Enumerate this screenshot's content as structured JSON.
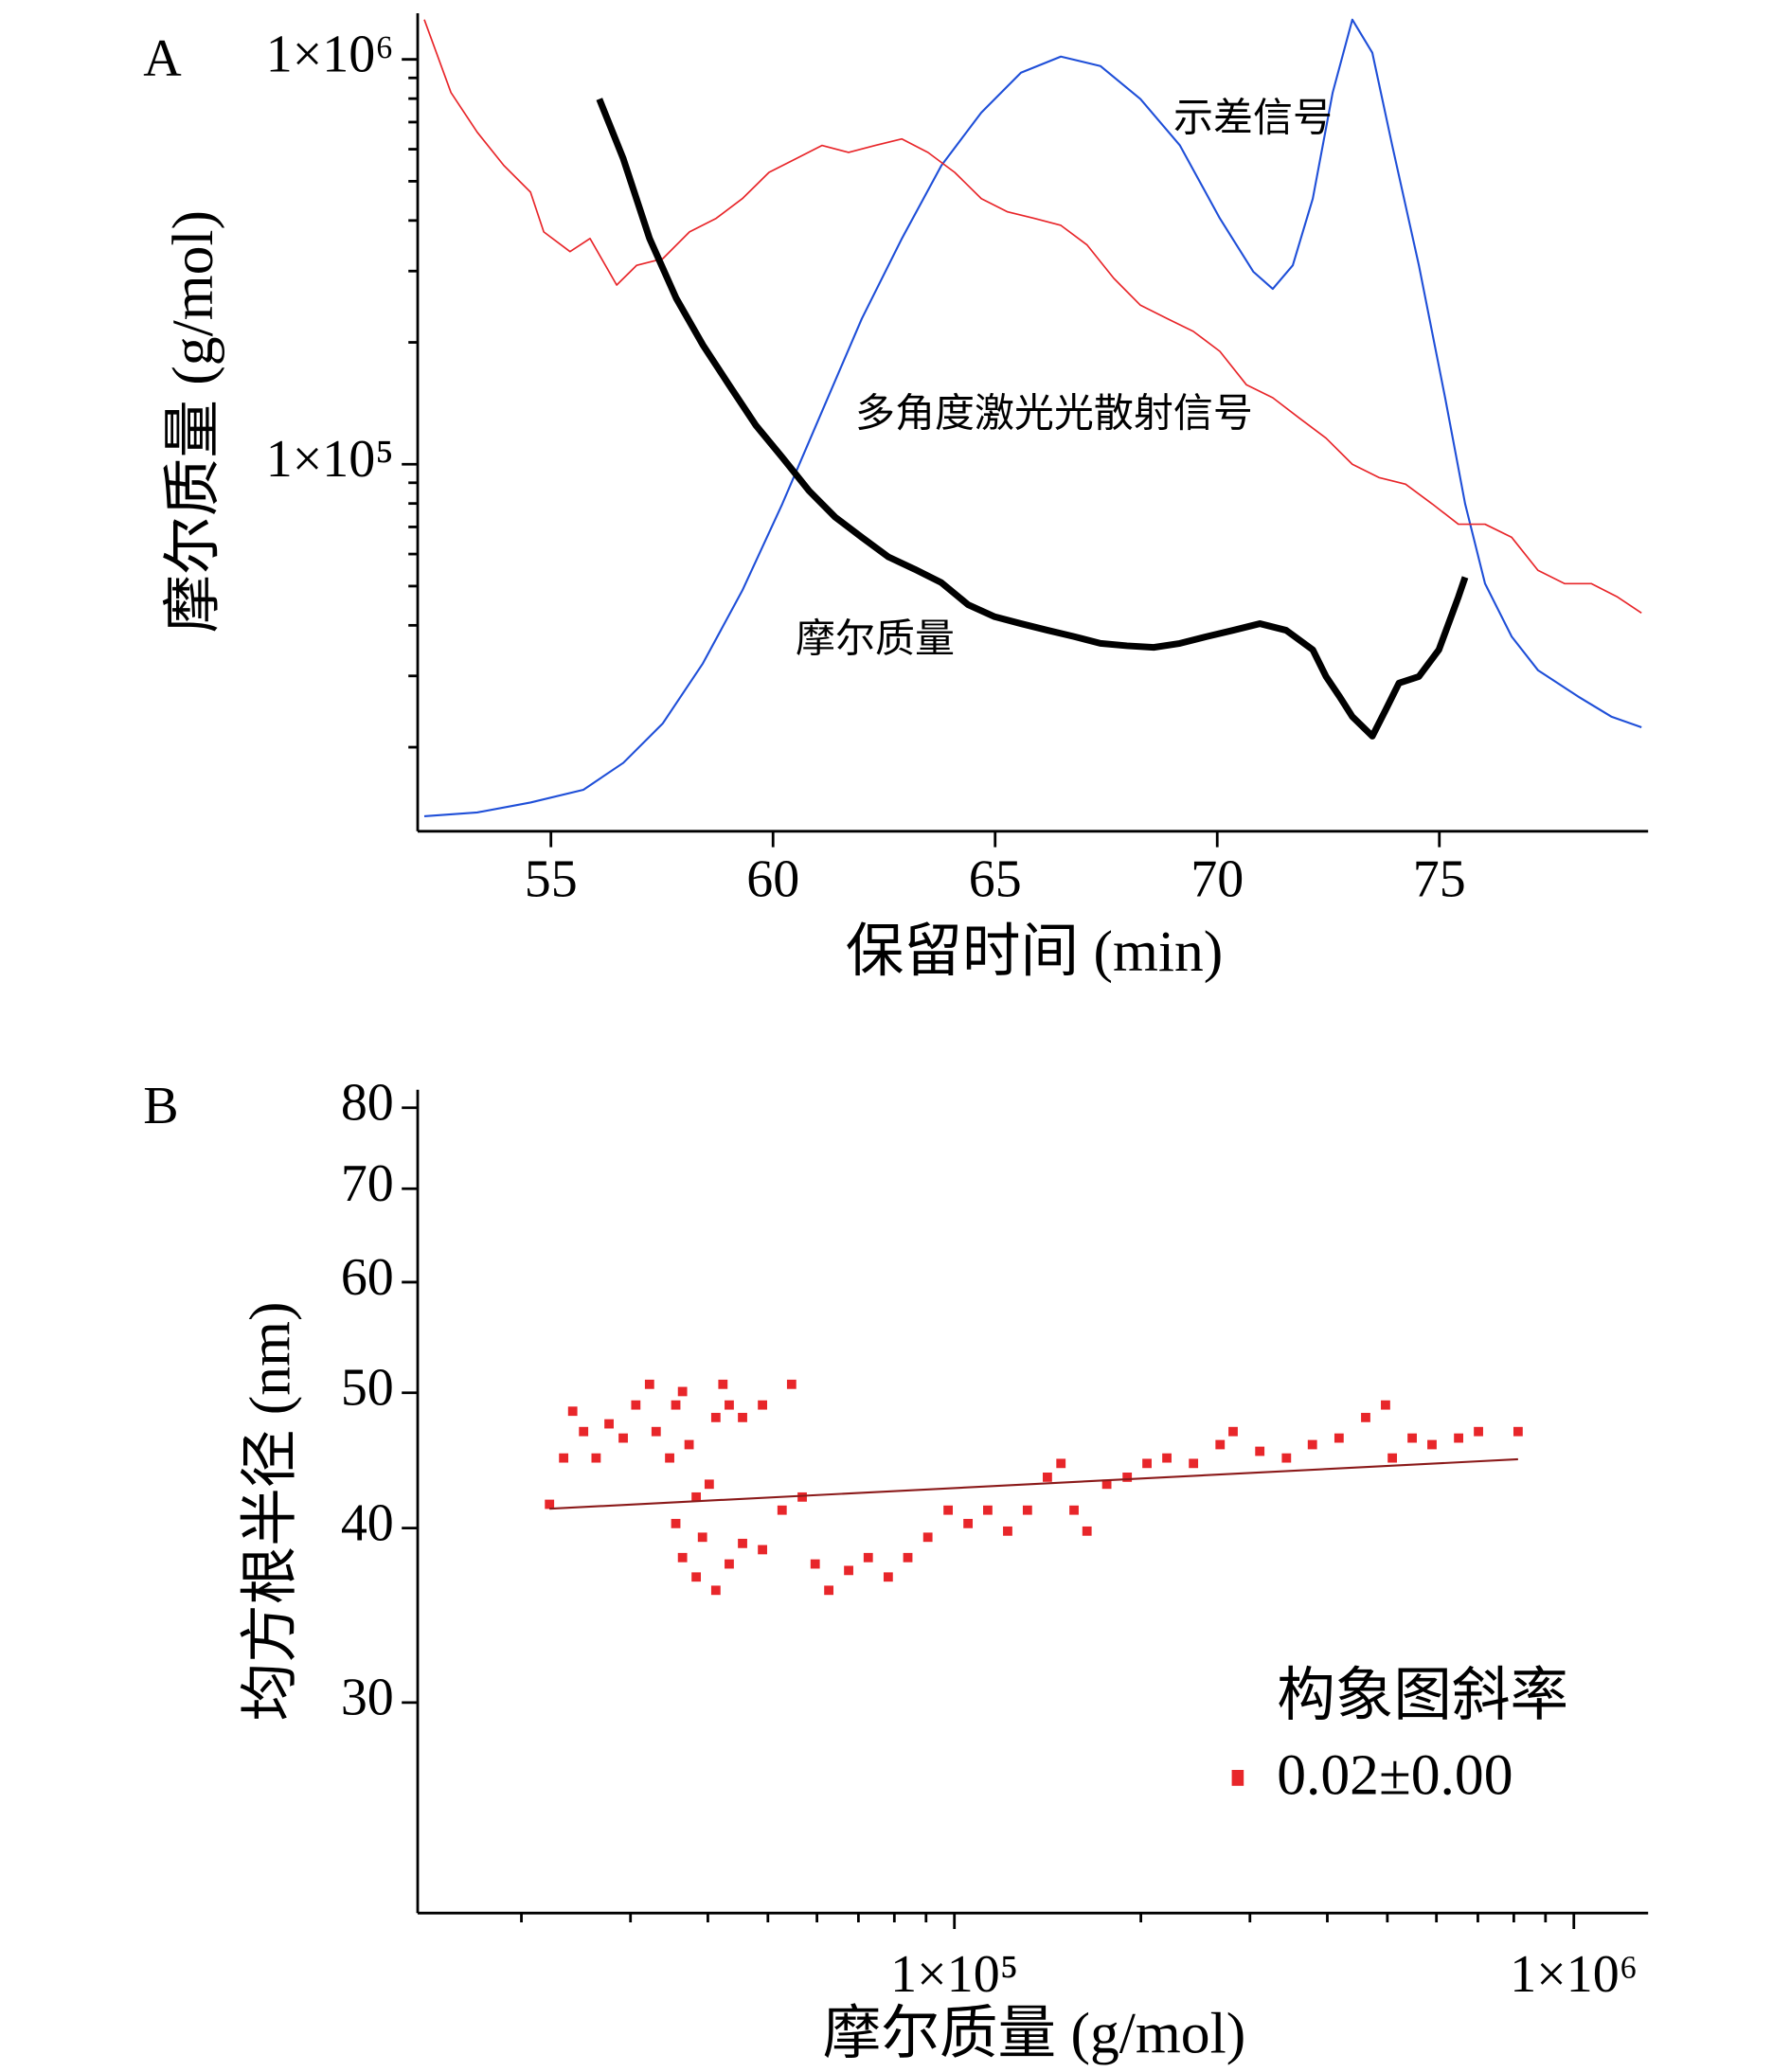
{
  "chart_data": [
    {
      "type": "line",
      "panel": "A",
      "ylabel": "摩尔质量 (g/mol)",
      "xlabel": "保留时间 (min)",
      "xlim": [
        52,
        79.7
      ],
      "xticks": [
        55,
        60,
        65,
        70,
        75
      ],
      "ylog": true,
      "ylim": [
        12400,
        1300000
      ],
      "yticks": [
        {
          "value": 100000,
          "label": "1×10⁵"
        },
        {
          "value": 1000000,
          "label": "1×10⁶"
        }
      ],
      "yminor_ticks": [
        20000,
        30000,
        40000,
        50000,
        60000,
        70000,
        80000,
        90000,
        200000,
        300000,
        400000,
        500000,
        600000,
        700000,
        800000,
        900000
      ],
      "series": [
        {
          "name": "示差信号",
          "color": "#1f4fd8",
          "width": 1.5,
          "x": [
            52.15,
            53.34,
            54.54,
            55.73,
            56.63,
            57.52,
            58.42,
            59.31,
            60.21,
            61.1,
            62.0,
            62.9,
            63.79,
            64.69,
            65.58,
            66.48,
            67.37,
            68.27,
            69.16,
            70.06,
            70.81,
            71.25,
            71.7,
            72.15,
            72.6,
            73.04,
            73.49,
            73.94,
            74.54,
            75.13,
            75.58,
            76.03,
            76.63,
            77.22,
            78.12,
            78.87,
            79.55
          ],
          "values": [
            13500,
            13800,
            14600,
            15700,
            18300,
            22900,
            32200,
            48800,
            79800,
            135000,
            229000,
            361000,
            547000,
            739000,
            927000,
            1016000,
            963000,
            798000,
            613000,
            405000,
            299000,
            271000,
            310000,
            453000,
            828000,
            1254000,
            1038000,
            613000,
            310000,
            146000,
            79800,
            50700,
            37500,
            31000,
            26700,
            23800,
            22400
          ]
        },
        {
          "name": "多角度激光光散射信号",
          "color": "#e8262a",
          "width": 1.2,
          "x": [
            52.15,
            52.75,
            53.34,
            53.94,
            54.54,
            54.84,
            55.43,
            55.88,
            56.48,
            56.93,
            57.52,
            58.12,
            58.72,
            59.31,
            59.91,
            60.51,
            61.1,
            61.7,
            62.3,
            62.9,
            63.49,
            64.09,
            64.69,
            65.28,
            65.88,
            66.48,
            67.07,
            67.67,
            68.27,
            68.87,
            69.46,
            70.06,
            70.66,
            71.25,
            71.85,
            72.45,
            73.04,
            73.64,
            74.24,
            74.84,
            75.43,
            76.03,
            76.63,
            77.22,
            77.82,
            78.42,
            79.01,
            79.55
          ],
          "values": [
            1254000,
            828000,
            661000,
            547000,
            470000,
            375000,
            335000,
            361000,
            277000,
            310000,
            322000,
            375000,
            405000,
            453000,
            526000,
            568000,
            613000,
            589000,
            613000,
            636000,
            589000,
            526000,
            453000,
            420000,
            405000,
            389000,
            348000,
            288000,
            247000,
            229000,
            213000,
            190000,
            157000,
            146000,
            130000,
            116000,
            100000,
            92700,
            89300,
            79800,
            71100,
            71100,
            66000,
            54700,
            50700,
            50700,
            47000,
            42900
          ]
        },
        {
          "name": "摩尔质量",
          "color": "#000000",
          "width": 5,
          "x": [
            56.09,
            56.63,
            57.22,
            57.82,
            58.42,
            59.01,
            59.61,
            60.21,
            60.81,
            61.4,
            62.0,
            62.6,
            63.19,
            63.79,
            64.39,
            64.99,
            65.58,
            66.18,
            66.78,
            67.37,
            67.97,
            68.57,
            69.16,
            69.76,
            70.36,
            70.96,
            71.55,
            72.15,
            72.45,
            72.75,
            73.04,
            73.49,
            73.79,
            74.09,
            74.54,
            74.99,
            75.43,
            75.58
          ],
          "values": [
            798000,
            568000,
            361000,
            257000,
            197000,
            157000,
            125000,
            104000,
            86000,
            74000,
            66000,
            59000,
            55000,
            51000,
            45000,
            42000,
            40400,
            38900,
            37500,
            36100,
            35600,
            35300,
            36100,
            37500,
            38900,
            40400,
            38900,
            34800,
            29900,
            26700,
            23800,
            21300,
            24700,
            28800,
            29900,
            34800,
            47000,
            52600
          ]
        }
      ]
    },
    {
      "type": "scatter",
      "panel": "B",
      "ylabel": "均方根半径 (nm)",
      "xlabel": "摩尔质量 (g/mol)",
      "xlog": true,
      "xlim": [
        13600,
        1318000
      ],
      "xticks": [
        {
          "value": 100000,
          "label": "1×10⁵"
        },
        {
          "value": 1000000,
          "label": "1×10⁶"
        }
      ],
      "xminor_ticks": [
        20000,
        30000,
        40000,
        50000,
        60000,
        70000,
        80000,
        90000,
        200000,
        300000,
        400000,
        500000,
        600000,
        700000,
        800000,
        900000
      ],
      "ylog": true,
      "ylim": [
        21.2,
        82.4
      ],
      "yticks": [
        30,
        40,
        50,
        60,
        70,
        80
      ],
      "legend": {
        "title": "构象图斜率",
        "label": "0.02±0.00",
        "corner": "lower right"
      },
      "series": [
        {
          "color": "#e8262a",
          "x": [
            22200,
            23400,
            24200,
            25200,
            26400,
            27700,
            29200,
            30600,
            32200,
            33000,
            34700,
            35500,
            36400,
            37300,
            38300,
            39200,
            40200,
            41200,
            42300,
            43300,
            45500,
            49000,
            54600,
            35500,
            36400,
            38300,
            41200,
            43300,
            45500,
            49000,
            52700,
            56800,
            59600,
            62700,
            67500,
            72600,
            78200,
            84100,
            90600,
            97700,
            105200,
            113200,
            121900,
            131200,
            141300,
            148600,
            156000,
            163700,
            176200,
            190100,
            204600,
            220300,
            243200,
            268500,
            281800,
            311200,
            343600,
            378400,
            417800,
            461300,
            496600,
            509300,
            548300,
            590200,
            651600,
            701500,
            812800
          ],
          "values": [
            41.6,
            44.9,
            48.5,
            46.9,
            44.9,
            47.5,
            46.4,
            49.0,
            50.7,
            46.9,
            44.9,
            49.0,
            50.1,
            45.9,
            42.1,
            39.4,
            43.0,
            48.0,
            50.7,
            49.0,
            48.0,
            49.0,
            50.7,
            40.3,
            38.1,
            36.9,
            36.1,
            37.7,
            39.0,
            38.6,
            41.2,
            42.1,
            37.7,
            36.1,
            37.3,
            38.1,
            36.9,
            38.1,
            39.4,
            41.2,
            40.3,
            41.2,
            39.8,
            41.2,
            43.5,
            44.5,
            41.2,
            39.8,
            43.0,
            43.5,
            44.5,
            44.9,
            44.5,
            45.9,
            46.9,
            45.4,
            44.9,
            45.9,
            46.4,
            48.0,
            49.0,
            44.9,
            46.4,
            45.9,
            46.4,
            46.9,
            46.9
          ]
        }
      ],
      "fit": {
        "color": "#8b1a1a",
        "x": [
          22200,
          812800
        ],
        "values": [
          41.3,
          44.8
        ]
      }
    }
  ]
}
